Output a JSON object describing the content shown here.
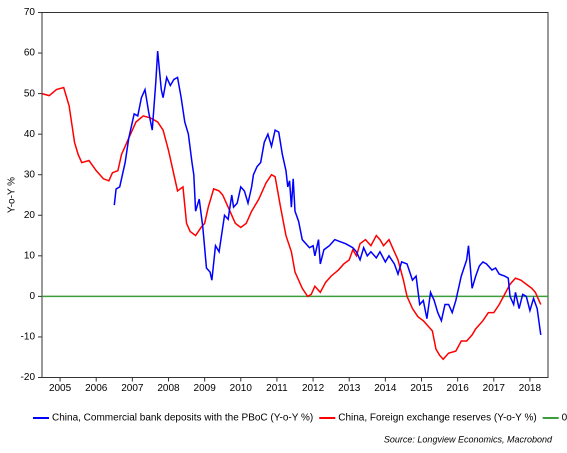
{
  "chart_data": {
    "type": "line",
    "y_label": "Y-o-Y %",
    "source": "Source: Longview Economics, Macrobond",
    "xlim": [
      2005,
      2019
    ],
    "xticks": [
      {
        "value": 2005.5,
        "label": "2005"
      },
      {
        "value": 2006.5,
        "label": "2006"
      },
      {
        "value": 2007.5,
        "label": "2007"
      },
      {
        "value": 2008.5,
        "label": "2008"
      },
      {
        "value": 2009.5,
        "label": "2009"
      },
      {
        "value": 2010.5,
        "label": "2010"
      },
      {
        "value": 2011.5,
        "label": "2011"
      },
      {
        "value": 2012.5,
        "label": "2012"
      },
      {
        "value": 2013.5,
        "label": "2013"
      },
      {
        "value": 2014.5,
        "label": "2014"
      },
      {
        "value": 2015.5,
        "label": "2015"
      },
      {
        "value": 2016.5,
        "label": "2016"
      },
      {
        "value": 2017.5,
        "label": "2017"
      },
      {
        "value": 2018.5,
        "label": "2018"
      }
    ],
    "ylim": [
      -20,
      70
    ],
    "yticks": [
      -20,
      -10,
      0,
      10,
      20,
      30,
      40,
      50,
      60,
      70
    ],
    "series": [
      {
        "name": "China, Commercial bank deposits with the PBoC (Y-o-Y %)",
        "color": "#0000ff",
        "x": [
          2007.0,
          2007.05,
          2007.15,
          2007.3,
          2007.4,
          2007.55,
          2007.65,
          2007.75,
          2007.85,
          2007.95,
          2008.05,
          2008.15,
          2008.2,
          2008.3,
          2008.35,
          2008.45,
          2008.55,
          2008.65,
          2008.75,
          2008.85,
          2008.95,
          2009.05,
          2009.15,
          2009.2,
          2009.25,
          2009.35,
          2009.45,
          2009.55,
          2009.65,
          2009.7,
          2009.8,
          2009.9,
          2010.0,
          2010.05,
          2010.15,
          2010.25,
          2010.3,
          2010.4,
          2010.5,
          2010.6,
          2010.7,
          2010.8,
          2010.85,
          2010.95,
          2011.05,
          2011.15,
          2011.25,
          2011.35,
          2011.45,
          2011.55,
          2011.65,
          2011.75,
          2011.8,
          2011.85,
          2011.9,
          2011.95,
          2012.0,
          2012.1,
          2012.2,
          2012.3,
          2012.4,
          2012.5,
          2012.55,
          2012.65,
          2012.7,
          2012.8,
          2012.95,
          2013.1,
          2013.25,
          2013.4,
          2013.5,
          2013.6,
          2013.7,
          2013.8,
          2013.9,
          2014.0,
          2014.1,
          2014.25,
          2014.35,
          2014.5,
          2014.6,
          2014.75,
          2014.85,
          2014.95,
          2015.1,
          2015.25,
          2015.35,
          2015.45,
          2015.55,
          2015.65,
          2015.75,
          2015.85,
          2015.95,
          2016.05,
          2016.15,
          2016.25,
          2016.35,
          2016.45,
          2016.6,
          2016.75,
          2016.8,
          2016.9,
          2017.0,
          2017.1,
          2017.2,
          2017.3,
          2017.45,
          2017.55,
          2017.65,
          2017.8,
          2017.9,
          2017.95,
          2018.05,
          2018.1,
          2018.2,
          2018.3,
          2018.4,
          2018.5,
          2018.6,
          2018.7,
          2018.8
        ],
        "values": [
          22.5,
          26.5,
          27,
          33,
          39,
          45,
          44.5,
          49,
          51,
          45.5,
          41,
          53,
          60.5,
          51,
          49,
          54,
          52,
          53.5,
          54,
          49,
          43,
          40,
          33,
          30,
          21,
          24,
          17,
          7,
          6,
          4,
          12.5,
          11,
          17,
          20,
          19,
          25,
          22,
          23,
          27,
          26,
          23,
          27,
          30,
          32,
          33,
          38,
          40,
          37,
          41,
          40.5,
          35,
          31,
          27,
          28.5,
          22,
          29,
          21,
          18.5,
          14,
          13,
          12,
          12.5,
          10,
          14,
          8,
          11.5,
          12.5,
          14,
          13.5,
          13,
          12.5,
          12,
          11,
          9,
          12,
          10,
          11,
          9.5,
          11,
          8.5,
          10,
          8,
          5.5,
          8.5,
          8,
          4,
          5,
          -2,
          -1,
          -5.5,
          1,
          -1,
          -4,
          -6,
          -2,
          -2,
          -4,
          -1,
          5,
          9,
          12.5,
          2,
          5,
          7.5,
          8.5,
          8,
          6.5,
          7,
          5.5,
          5,
          4.5,
          0,
          -2,
          1,
          -3,
          0.5,
          0,
          -3.5,
          -0.5,
          -3,
          -9.5
        ]
      },
      {
        "name": "China, Foreign exchange reserves (Y-o-Y %)",
        "color": "#ff0000",
        "x": [
          2005.0,
          2005.2,
          2005.4,
          2005.6,
          2005.75,
          2005.9,
          2006.0,
          2006.1,
          2006.3,
          2006.5,
          2006.7,
          2006.85,
          2006.95,
          2007.1,
          2007.2,
          2007.4,
          2007.6,
          2007.8,
          2008.0,
          2008.2,
          2008.35,
          2008.5,
          2008.65,
          2008.75,
          2008.9,
          2009.0,
          2009.1,
          2009.25,
          2009.4,
          2009.5,
          2009.6,
          2009.75,
          2009.9,
          2010.0,
          2010.2,
          2010.35,
          2010.5,
          2010.65,
          2010.8,
          2011.0,
          2011.2,
          2011.35,
          2011.45,
          2011.6,
          2011.75,
          2011.9,
          2012.0,
          2012.2,
          2012.35,
          2012.45,
          2012.55,
          2012.7,
          2012.85,
          2013.0,
          2013.2,
          2013.35,
          2013.5,
          2013.6,
          2013.7,
          2013.8,
          2013.95,
          2014.1,
          2014.25,
          2014.35,
          2014.45,
          2014.6,
          2014.75,
          2014.85,
          2015.0,
          2015.1,
          2015.25,
          2015.4,
          2015.55,
          2015.65,
          2015.8,
          2015.9,
          2016.0,
          2016.1,
          2016.25,
          2016.45,
          2016.6,
          2016.75,
          2016.9,
          2017.0,
          2017.2,
          2017.35,
          2017.5,
          2017.65,
          2017.8,
          2017.95,
          2018.1,
          2018.25,
          2018.4,
          2018.55,
          2018.65,
          2018.75,
          2018.8
        ],
        "values": [
          50,
          49.5,
          51,
          51.5,
          47,
          38,
          35,
          33,
          33.5,
          31,
          29,
          28.5,
          30.5,
          31,
          35,
          39,
          43,
          44.5,
          44,
          43,
          41,
          36,
          30,
          26,
          27,
          18,
          16,
          15,
          17,
          18,
          22,
          26.5,
          26,
          25,
          21,
          18,
          17,
          18,
          21,
          24,
          28,
          30,
          29.5,
          22,
          15,
          11,
          6,
          2,
          0,
          0.5,
          2.5,
          1,
          3.5,
          5,
          6.5,
          8,
          9,
          11.5,
          10,
          13,
          14,
          12.5,
          15,
          14,
          12.5,
          14,
          11,
          9,
          4,
          0,
          -3,
          -5,
          -6,
          -7,
          -8.5,
          -13,
          -14.5,
          -15.5,
          -14,
          -13.5,
          -11,
          -11,
          -9.5,
          -8,
          -6,
          -4,
          -4,
          -2,
          0.5,
          3,
          4.5,
          4,
          3,
          2,
          1,
          -1,
          -2
        ]
      },
      {
        "name": "0",
        "color": "#3a9e3a",
        "x": [
          2005,
          2019
        ],
        "values": [
          0,
          0
        ]
      }
    ]
  }
}
